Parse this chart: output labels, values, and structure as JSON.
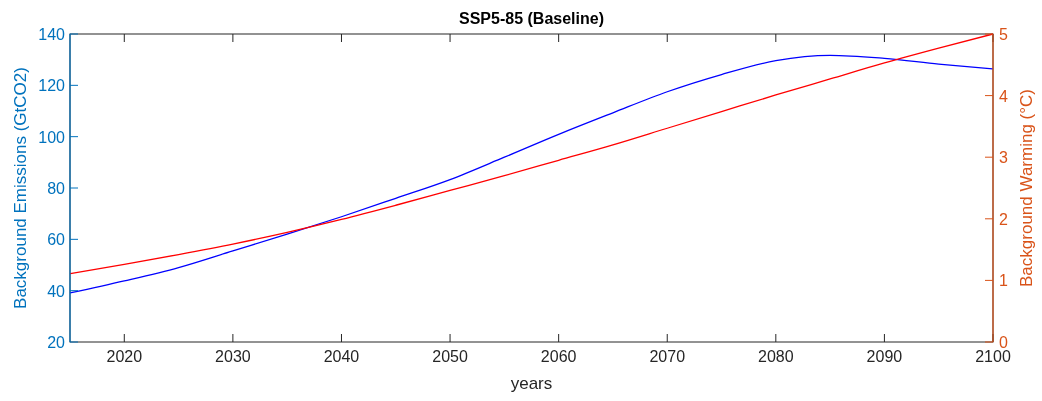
{
  "chart_data": {
    "type": "line",
    "title": "SSP5-85 (Baseline)",
    "xlabel": "years",
    "ylabel": "Background Emissions (GtCO2)",
    "y2label": "Background Warming (°C)",
    "x": [
      2015,
      2020,
      2025,
      2030,
      2035,
      2040,
      2045,
      2050,
      2055,
      2060,
      2065,
      2070,
      2075,
      2080,
      2085,
      2090,
      2095,
      2100
    ],
    "series": [
      {
        "color": "#0000ff",
        "values": [
          39.1,
          43.8,
          49,
          55.5,
          62,
          68.8,
          76,
          83.3,
          92,
          100.9,
          109.3,
          117.5,
          124.2,
          129.6,
          131.7,
          130.5,
          128.3,
          126.4
        ]
      },
      {
        "color": "#ff0000",
        "axis": "y2",
        "values": [
          1.11,
          1.26,
          1.42,
          1.59,
          1.78,
          1.99,
          2.22,
          2.46,
          2.7,
          2.95,
          3.2,
          3.47,
          3.74,
          4.01,
          4.27,
          4.53,
          4.77,
          5.0
        ]
      }
    ],
    "xlim": [
      2015,
      2100
    ],
    "xticks": [
      2020,
      2030,
      2040,
      2050,
      2060,
      2070,
      2080,
      2090,
      2100
    ],
    "ylim": [
      20,
      140
    ],
    "yticks": [
      20,
      40,
      60,
      80,
      100,
      120,
      140
    ],
    "y2lim": [
      0,
      5
    ],
    "y2ticks": [
      0,
      1,
      2,
      3,
      4,
      5
    ],
    "grid": false
  }
}
